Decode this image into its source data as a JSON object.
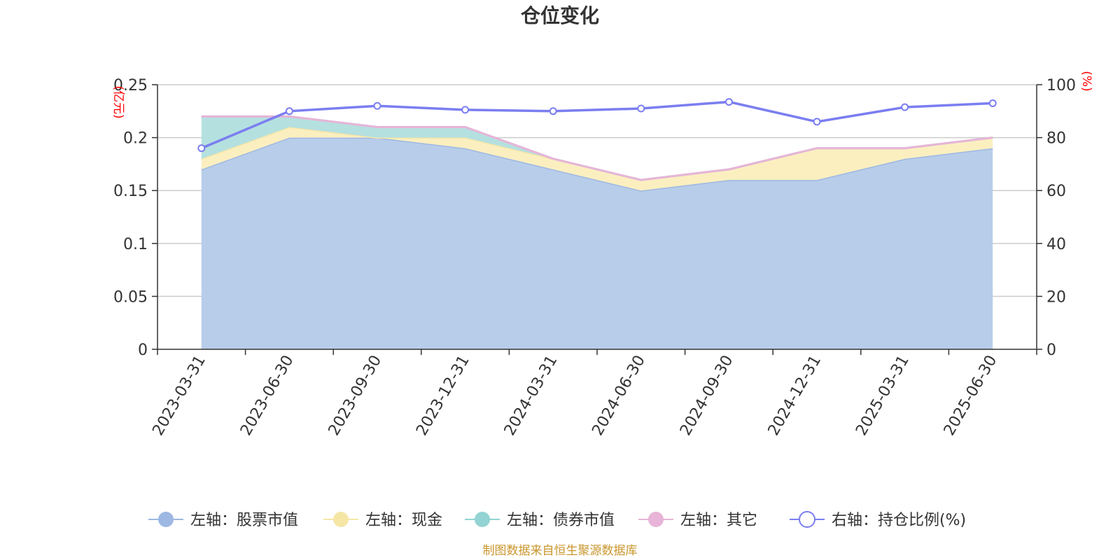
{
  "chart_data": {
    "type": "area",
    "title": "仓位变化",
    "categories": [
      "2023-03-31",
      "2023-06-30",
      "2023-09-30",
      "2023-12-31",
      "2024-03-31",
      "2024-06-30",
      "2024-09-30",
      "2024-12-31",
      "2025-03-31",
      "2025-06-30"
    ],
    "left_axis": {
      "unit": "(亿元)",
      "ylim": [
        0,
        0.25
      ],
      "ticks": [
        "0",
        "0.05",
        "0.1",
        "0.15",
        "0.2",
        "0.25"
      ]
    },
    "right_axis": {
      "unit": "(%)",
      "ylim": [
        0,
        100
      ],
      "ticks": [
        "0",
        "20",
        "40",
        "60",
        "80",
        "100"
      ]
    },
    "stacked": true,
    "series": [
      {
        "name": "左轴：股票市值",
        "axis": "left",
        "color": "#9db8e2",
        "fill": "#b8cdea",
        "values": [
          0.17,
          0.2,
          0.2,
          0.19,
          0.17,
          0.15,
          0.16,
          0.16,
          0.18,
          0.19
        ]
      },
      {
        "name": "左轴：现金",
        "axis": "left",
        "color": "#f6e6a6",
        "fill": "#fbefc0",
        "values": [
          0.01,
          0.01,
          0.0,
          0.01,
          0.01,
          0.01,
          0.01,
          0.03,
          0.01,
          0.01
        ]
      },
      {
        "name": "左轴：债券市值",
        "axis": "left",
        "color": "#93d3d3",
        "fill": "#b5e0e0",
        "values": [
          0.04,
          0.01,
          0.01,
          0.01,
          0.0,
          0.0,
          0.0,
          0.0,
          0.0,
          0.0
        ]
      },
      {
        "name": "左轴：其它",
        "axis": "left",
        "color": "#e8b4d8",
        "fill": "#eac2de",
        "values": [
          0.0,
          0.0,
          0.0,
          0.0,
          0.0,
          0.0,
          0.0,
          0.0,
          0.0,
          0.0
        ]
      },
      {
        "name": "右轴：持仓比例(%)",
        "axis": "right",
        "type": "line",
        "color": "#7b7ef0",
        "values": [
          76.0,
          90.0,
          92.0,
          90.5,
          90.0,
          91.0,
          93.5,
          86.0,
          91.5,
          93.0
        ]
      }
    ],
    "grid": true,
    "legend_position": "bottom"
  },
  "source_note": "制图数据来自恒生聚源数据库"
}
